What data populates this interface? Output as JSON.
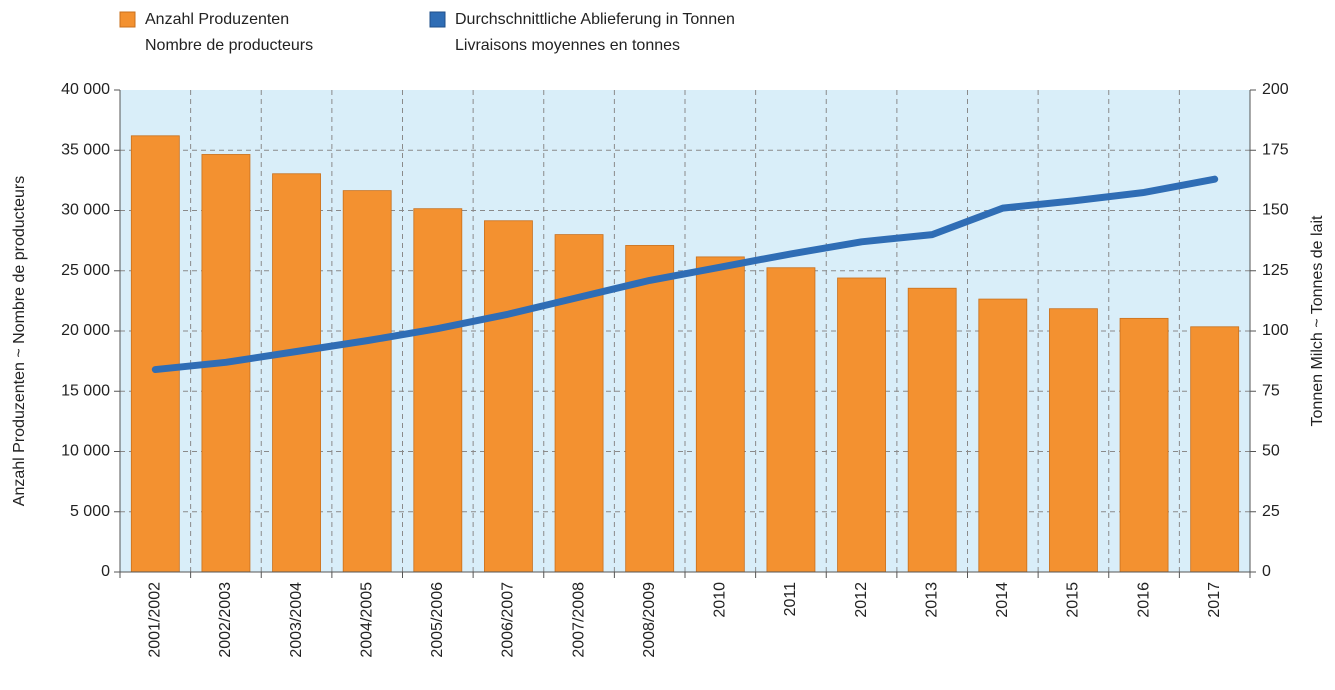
{
  "chart_data": {
    "type": "bar_line",
    "ylabel": "Anzahl Produzenten   ~   Nombre de producteurs",
    "y2label": "Tonnen Milch   ~   Tonnes de lait",
    "categories": [
      "2001/2002",
      "2002/2003",
      "2003/2004",
      "2004/2005",
      "2005/2006",
      "2006/2007",
      "2007/2008",
      "2008/2009",
      "2010",
      "2011",
      "2012",
      "2013",
      "2014",
      "2015",
      "2016",
      "2017"
    ],
    "series": [
      {
        "name": "Anzahl Produzenten",
        "name_fr": "Nombre de producteurs",
        "type": "bar",
        "color": "#f39130",
        "values": [
          36200,
          34650,
          33050,
          31650,
          30150,
          29150,
          28000,
          27100,
          26150,
          25250,
          24400,
          23550,
          22650,
          21850,
          21050,
          20350
        ]
      },
      {
        "name": "Durchschnittliche Ablieferung in Tonnen",
        "name_fr": "Livraisons moyennes en tonnes",
        "type": "line",
        "axis": "y2",
        "color": "#2f6db5",
        "values": [
          84,
          87,
          91.5,
          96,
          101,
          107,
          114,
          121,
          126.5,
          132,
          137,
          140,
          151,
          154,
          157.5,
          163
        ]
      }
    ],
    "ylim": [
      0,
      40000
    ],
    "yticks": [
      0,
      {
        "value": 5000,
        "label": "5 000"
      },
      {
        "value": 10000,
        "label": "10 000"
      },
      {
        "value": 15000,
        "label": "15 000"
      },
      {
        "value": 20000,
        "label": "20 000"
      },
      {
        "value": 25000,
        "label": "25 000"
      },
      {
        "value": 30000,
        "label": "30 000"
      },
      {
        "value": 35000,
        "label": "35 000"
      },
      {
        "value": 40000,
        "label": "40 000"
      }
    ],
    "y2lim": [
      0,
      200
    ],
    "y2ticks": [
      0,
      25,
      50,
      75,
      100,
      125,
      150,
      175,
      200
    ],
    "grid": true,
    "plot_background": "#d9eef9"
  }
}
